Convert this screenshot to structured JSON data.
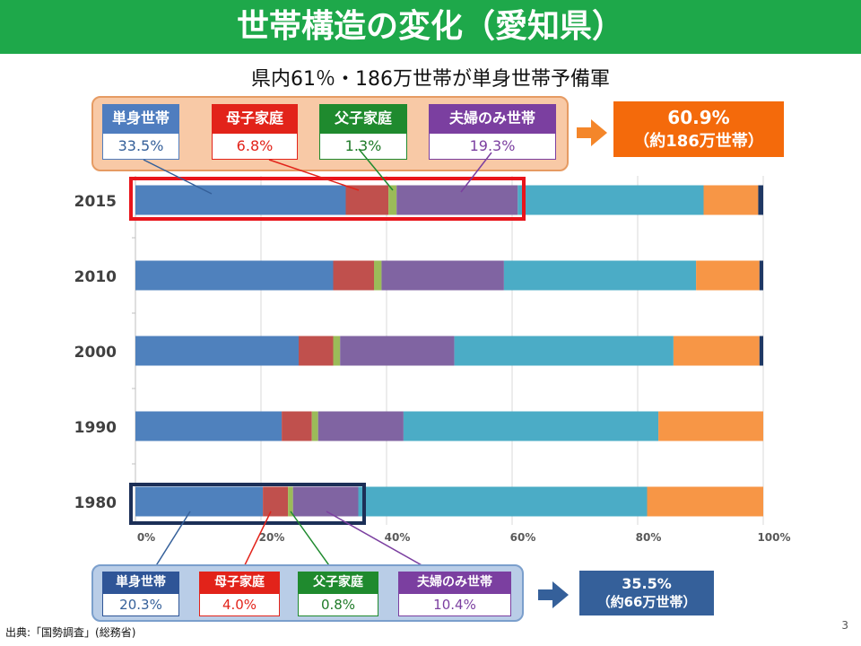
{
  "slide": {
    "title": "世帯構造の変化（愛知県）",
    "subtitle": "県内61％・186万世帯が単身世帯予備軍",
    "source": "出典:「国勢調査」(総務省)",
    "page": "3"
  },
  "legend_2015": [
    {
      "label": "単身世帯",
      "value": "33.5%",
      "color": "#4f7dbf"
    },
    {
      "label": "母子家庭",
      "value": "6.8%",
      "color": "#e2231a"
    },
    {
      "label": "父子家庭",
      "value": "1.3%",
      "color": "#1f8a2e"
    },
    {
      "label": "夫婦のみ世帯",
      "value": "19.3%",
      "color": "#7b3fa0"
    }
  ],
  "callout_2015": {
    "line1": "60.9%",
    "line2": "（約186万世帯）",
    "color": "#f46a0b"
  },
  "legend_1980": [
    {
      "label": "単身世帯",
      "value": "20.3%",
      "color": "#2f5597"
    },
    {
      "label": "母子家庭",
      "value": "4.0%",
      "color": "#e2231a"
    },
    {
      "label": "父子家庭",
      "value": "0.8%",
      "color": "#1f8a2e"
    },
    {
      "label": "夫婦のみ世帯",
      "value": "10.4%",
      "color": "#7b3fa0"
    }
  ],
  "callout_1980": {
    "line1": "35.5%",
    "line2": "（約66万世帯）",
    "color": "#35609a"
  },
  "chart_data": {
    "type": "bar",
    "orientation": "horizontal",
    "stacked": true,
    "normalized": true,
    "categories": [
      "2015",
      "2010",
      "2000",
      "1990",
      "1980"
    ],
    "xlim": [
      0,
      100
    ],
    "x_ticks": [
      "0%",
      "20%",
      "40%",
      "60%",
      "80%",
      "100%"
    ],
    "grid": true,
    "series": [
      {
        "color": "#4f81bd",
        "values": [
          33.5,
          31.5,
          26.0,
          23.3,
          20.3
        ]
      },
      {
        "color": "#c0504d",
        "values": [
          6.8,
          6.5,
          5.5,
          4.8,
          4.0
        ]
      },
      {
        "color": "#9bbb59",
        "values": [
          1.3,
          1.2,
          1.1,
          1.0,
          0.8
        ]
      },
      {
        "color": "#8064a2",
        "values": [
          19.3,
          19.5,
          18.2,
          13.6,
          10.4
        ]
      },
      {
        "color": "#4bacc6",
        "values": [
          29.6,
          30.6,
          34.9,
          40.6,
          46.0
        ]
      },
      {
        "color": "#f79646",
        "values": [
          8.7,
          10.1,
          13.7,
          16.7,
          18.5
        ]
      },
      {
        "color": "#1f3864",
        "values": [
          0.8,
          0.6,
          0.6,
          0.0,
          0.0
        ]
      }
    ]
  }
}
